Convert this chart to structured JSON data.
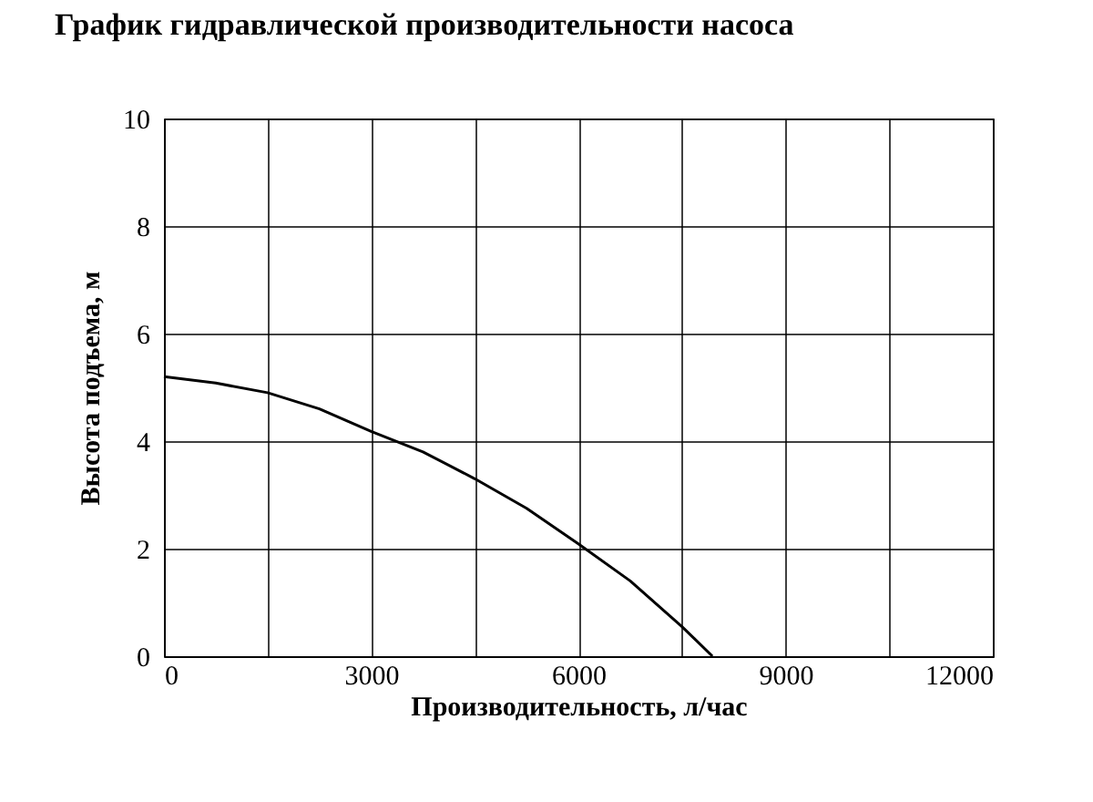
{
  "chart_data": {
    "type": "line",
    "title": "График гидравлической производительности насоса",
    "xlabel": "Производительность, л/час",
    "ylabel": "Высота подъема, м",
    "x": [
      0,
      750,
      1500,
      2250,
      3000,
      3750,
      4500,
      5250,
      6000,
      6750,
      7500,
      7940
    ],
    "series": [
      {
        "color": "#000000",
        "values": [
          5.2,
          5.08,
          4.9,
          4.6,
          4.18,
          3.8,
          3.3,
          2.75,
          2.09,
          1.4,
          0.55,
          0
        ]
      }
    ],
    "xlim": [
      0,
      12000
    ],
    "xticks": [
      0,
      {
        "value": 1500,
        "label": null
      },
      3000,
      {
        "value": 4500,
        "label": null
      },
      6000,
      {
        "value": 7500,
        "label": null
      },
      9000,
      {
        "value": 10500,
        "label": null
      },
      12000
    ],
    "ylim": [
      0,
      10
    ],
    "yticks": [
      0,
      2,
      4,
      6,
      8,
      10
    ],
    "grid": true,
    "marker": "none",
    "line_style": "solid"
  }
}
